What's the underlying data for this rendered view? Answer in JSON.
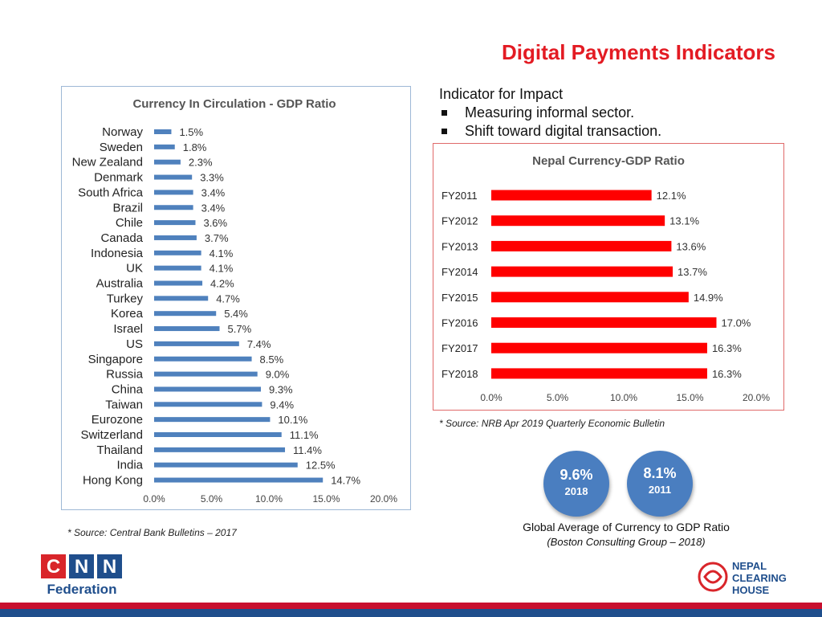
{
  "title": "Digital Payments Indicators",
  "colors": {
    "accent": "#e31b23",
    "bar_blue": "#4f81bd",
    "bar_red": "#ff0000",
    "circle": "#4a7ec0"
  },
  "indicator": {
    "heading": "Indicator for Impact",
    "bullets": [
      "Measuring informal sector.",
      "Shift toward digital transaction."
    ]
  },
  "chart_data": [
    {
      "type": "bar",
      "orientation": "horizontal",
      "title": "Currency In Circulation - GDP Ratio",
      "categories": [
        "Norway",
        "Sweden",
        "New Zealand",
        "Denmark",
        "South Africa",
        "Brazil",
        "Chile",
        "Canada",
        "Indonesia",
        "UK",
        "Australia",
        "Turkey",
        "Korea",
        "Israel",
        "US",
        "Singapore",
        "Russia",
        "China",
        "Taiwan",
        "Eurozone",
        "Switzerland",
        "Thailand",
        "India",
        "Hong Kong"
      ],
      "values": [
        1.5,
        1.8,
        2.3,
        3.3,
        3.4,
        3.4,
        3.6,
        3.7,
        4.1,
        4.1,
        4.2,
        4.7,
        5.4,
        5.7,
        7.4,
        8.5,
        9.0,
        9.3,
        9.4,
        10.1,
        11.1,
        11.4,
        12.5,
        14.7
      ],
      "data_labels": [
        "1.5%",
        "1.8%",
        "2.3%",
        "3.3%",
        "3.4%",
        "3.4%",
        "3.6%",
        "3.7%",
        "4.1%",
        "4.1%",
        "4.2%",
        "4.7%",
        "5.4%",
        "5.7%",
        "7.4%",
        "8.5%",
        "9.0%",
        "9.3%",
        "9.4%",
        "10.1%",
        "11.1%",
        "11.4%",
        "12.5%",
        "14.7%"
      ],
      "xlim": [
        0,
        20
      ],
      "ticks": [
        "0.0%",
        "5.0%",
        "10.0%",
        "15.0%",
        "20.0%"
      ],
      "grid": false,
      "color": "#4f81bd"
    },
    {
      "type": "bar",
      "orientation": "horizontal",
      "title": "Nepal Currency-GDP Ratio",
      "categories": [
        "FY2011",
        "FY2012",
        "FY2013",
        "FY2014",
        "FY2015",
        "FY2016",
        "FY2017",
        "FY2018"
      ],
      "values": [
        12.1,
        13.1,
        13.6,
        13.7,
        14.9,
        17.0,
        16.3,
        16.3
      ],
      "data_labels": [
        "12.1%",
        "13.1%",
        "13.6%",
        "13.7%",
        "14.9%",
        "17.0%",
        "16.3%",
        "16.3%"
      ],
      "xlim": [
        0,
        20
      ],
      "ticks": [
        "0.0%",
        "5.0%",
        "10.0%",
        "15.0%",
        "20.0%"
      ],
      "grid": false,
      "color": "#ff0000"
    }
  ],
  "source_left": "* Source: Central Bank Bulletins – 2017",
  "source_right": "* Source: NRB Apr 2019 Quarterly Economic Bulletin",
  "circles": [
    {
      "value": "9.6%",
      "year": "2018"
    },
    {
      "value": "8.1%",
      "year": "2011"
    }
  ],
  "global": {
    "line1": "Global Average of Currency to GDP Ratio",
    "line2": "(Boston Consulting Group – 2018)"
  },
  "logo_left": {
    "letters": [
      "C",
      "N",
      "N"
    ],
    "word": "Federation"
  },
  "logo_right": {
    "lines": [
      "NEPAL",
      "CLEARING",
      "HOUSE"
    ]
  }
}
